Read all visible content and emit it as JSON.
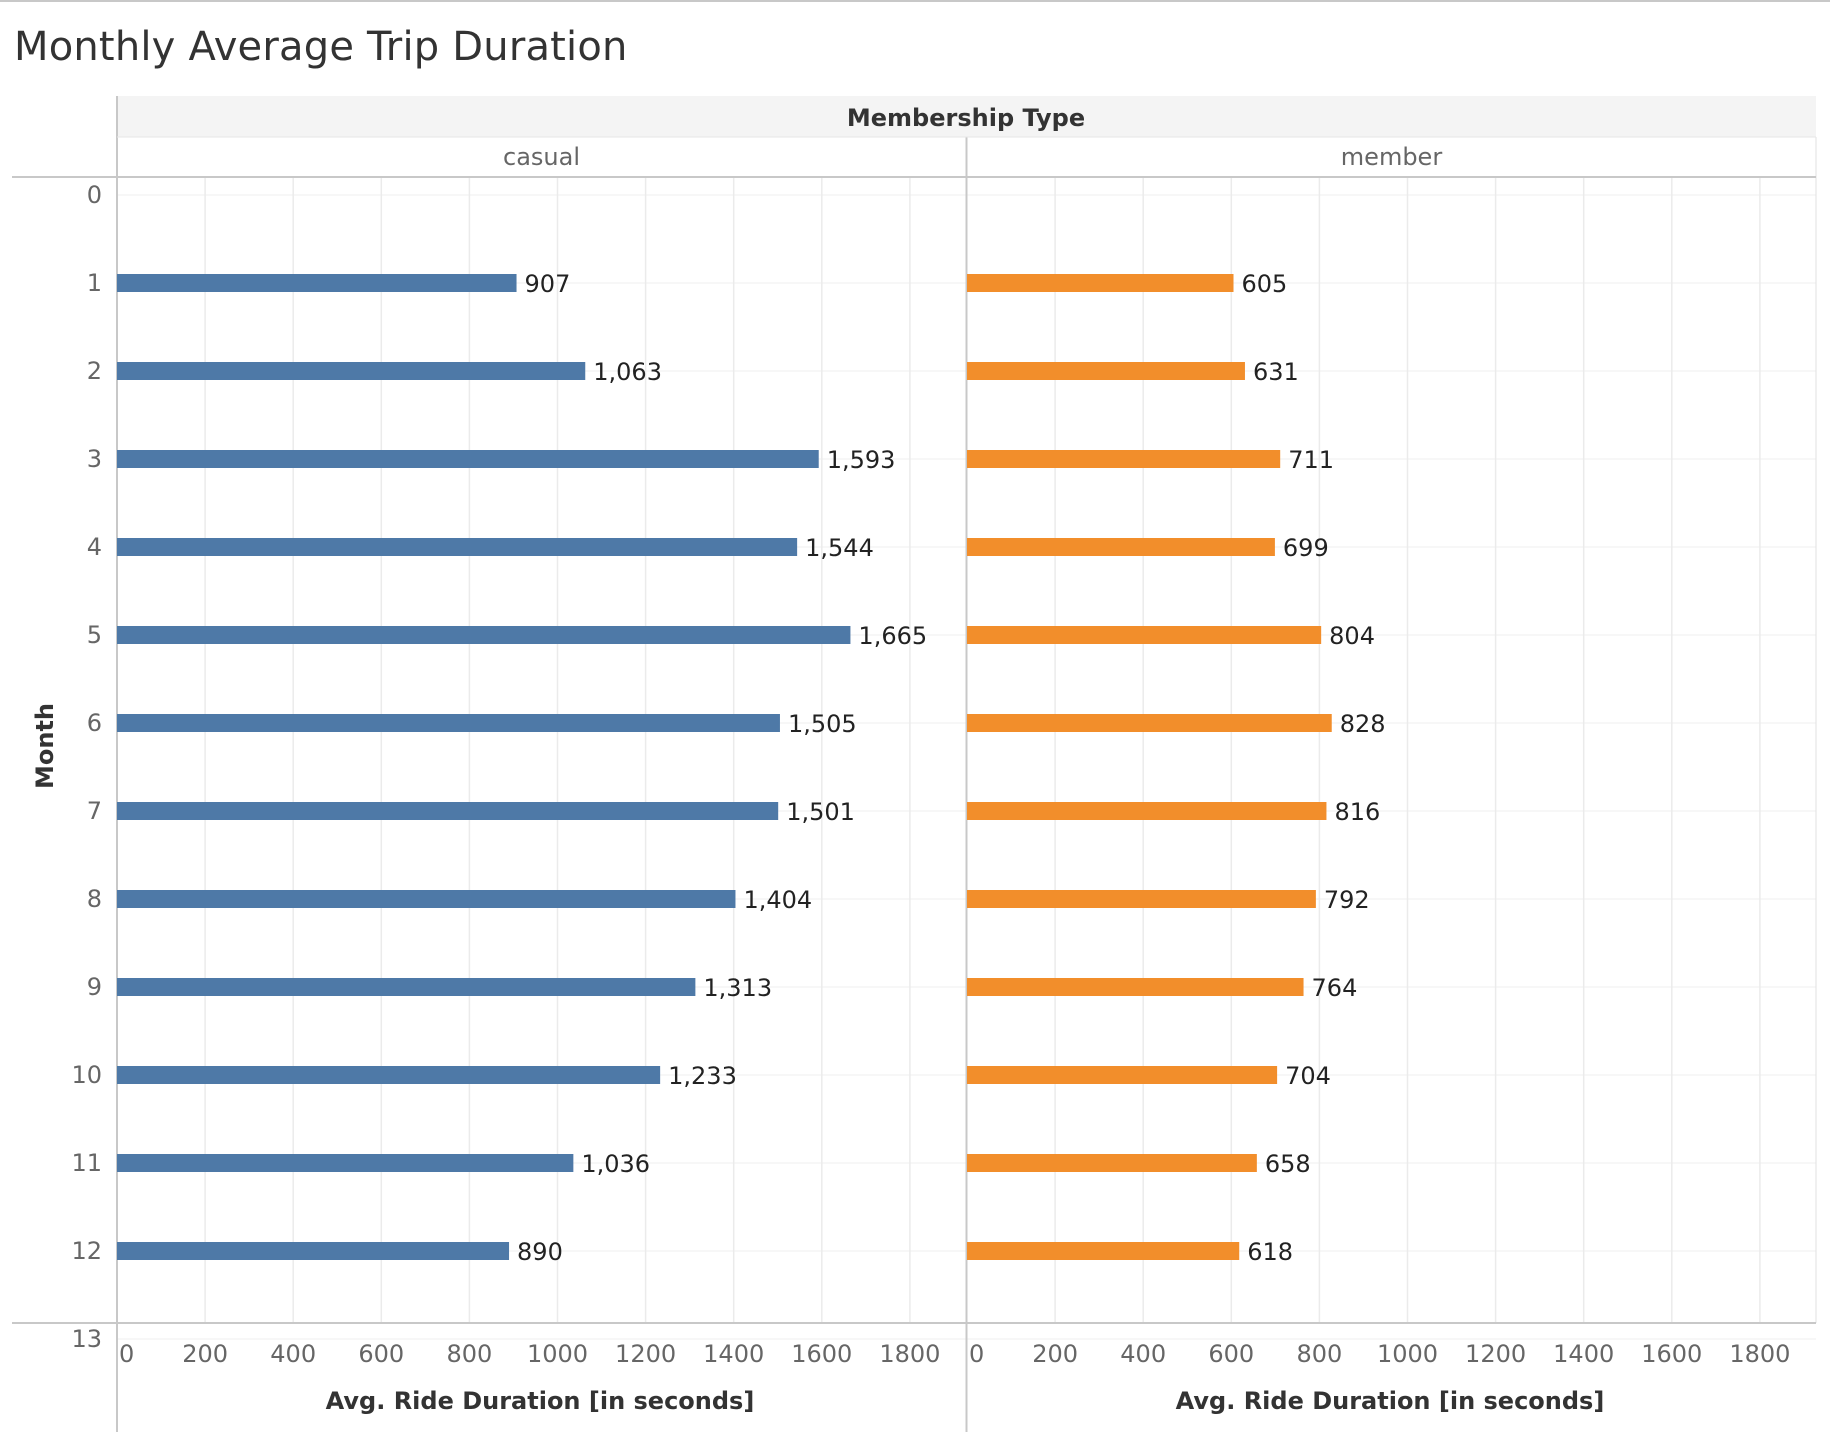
{
  "chart_data": {
    "type": "bar",
    "orientation": "horizontal",
    "title": "Monthly Average Trip Duration",
    "column_header": "Membership Type",
    "ylabel": "Month",
    "xlabel": "Avg. Ride Duration [in seconds]",
    "y_ticks": [
      "0",
      "1",
      "2",
      "3",
      "4",
      "5",
      "6",
      "7",
      "8",
      "9",
      "10",
      "11",
      "12",
      "13"
    ],
    "categories": [
      "1",
      "2",
      "3",
      "4",
      "5",
      "6",
      "7",
      "8",
      "9",
      "10",
      "11",
      "12"
    ],
    "x_ticks": [
      "0",
      "200",
      "400",
      "600",
      "800",
      "1000",
      "1200",
      "1400",
      "1600",
      "1800"
    ],
    "xlim": [
      0,
      1940
    ],
    "ylim": [
      0,
      13
    ],
    "grid": true,
    "series": [
      {
        "name": "casual",
        "color": "#4e79a7",
        "values": [
          907,
          1063,
          1593,
          1544,
          1665,
          1505,
          1501,
          1404,
          1313,
          1233,
          1036,
          890
        ],
        "labels": [
          "907",
          "1,063",
          "1,593",
          "1,544",
          "1,665",
          "1,505",
          "1,501",
          "1,404",
          "1,313",
          "1,233",
          "1,036",
          "890"
        ]
      },
      {
        "name": "member",
        "color": "#f28e2b",
        "values": [
          605,
          631,
          711,
          699,
          804,
          828,
          816,
          792,
          764,
          704,
          658,
          618
        ],
        "labels": [
          "605",
          "631",
          "711",
          "699",
          "804",
          "828",
          "816",
          "792",
          "764",
          "704",
          "658",
          "618"
        ]
      }
    ]
  }
}
